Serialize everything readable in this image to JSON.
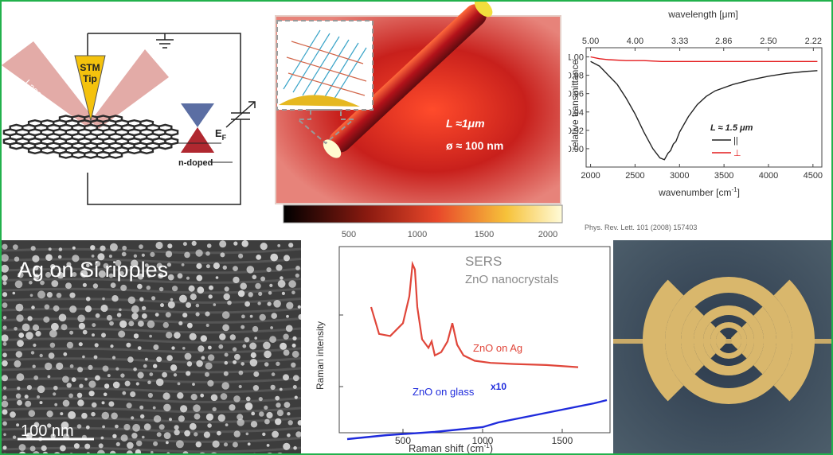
{
  "stm_panel": {
    "laser_label": "Laser",
    "tip_label_line1": "STM",
    "tip_label_line2": "Tip",
    "fermi_label": "E",
    "fermi_sub": "F",
    "doping_label": "n-doped"
  },
  "nanorod_panel": {
    "length_label": "L ≈1μm",
    "diameter_label": "ø ≈ 100 nm",
    "colorbar_ticks": [
      "500",
      "1000",
      "1500",
      "2000"
    ]
  },
  "spectrum_panel": {
    "top_axis_label": "wavelength [μm]",
    "top_ticks": [
      "5.00",
      "4.00",
      "3.33",
      "2.86",
      "2.50",
      "2.22"
    ],
    "ylabel": "relative transmittance",
    "xlabel": "wavenumber [cm",
    "xlabel_sup": "-1",
    "xlabel_end": "]",
    "legend_title": "L ≈ 1.5 μm",
    "legend_parallel": "||",
    "legend_perp": "⊥",
    "citation": "Phys. Rev. Lett. 101 (2008) 157403"
  },
  "sem_panel": {
    "title": "Ag on Si ripples",
    "scale_label": "100 nm"
  },
  "raman_panel": {
    "title_line1": "SERS",
    "title_line2": "ZnO nanocrystals",
    "series_ag_label": "ZnO on Ag",
    "series_glass_label": "ZnO on glass",
    "scale_factor_label": "x10",
    "ylabel": "Raman intensity",
    "xlabel": "Raman shift (cm",
    "xlabel_sup": "-1",
    "xlabel_end": ")"
  },
  "colors": {
    "frame": "#22b14c",
    "perp_series": "#e41a1c",
    "parallel_series": "#222222",
    "ag_series": "#e0463a",
    "glass_series": "#1f2bdc",
    "antenna_gold": "#d9b76c"
  },
  "chart_data": [
    {
      "type": "line",
      "title": "",
      "xlabel": "wavenumber [cm-1]",
      "ylabel": "relative transmittance",
      "xlim": [
        1950,
        4600
      ],
      "ylim": [
        0.88,
        1.01
      ],
      "xticks": [
        2000,
        2500,
        3000,
        3500,
        4000,
        4500
      ],
      "yticks": [
        0.9,
        0.92,
        0.94,
        0.96,
        0.98,
        1.0
      ],
      "secondary_xlabel": "wavelength [μm]",
      "secondary_xticks": [
        "5.00",
        "4.00",
        "3.33",
        "2.86",
        "2.50",
        "2.22"
      ],
      "legend": "bottom-right",
      "series": [
        {
          "name": "||",
          "x": [
            2000,
            2100,
            2200,
            2300,
            2400,
            2500,
            2600,
            2700,
            2780,
            2830,
            2870,
            2900,
            2930,
            2960,
            3000,
            3100,
            3200,
            3300,
            3400,
            3600,
            3800,
            4000,
            4200,
            4400,
            4550
          ],
          "values": [
            0.995,
            0.99,
            0.98,
            0.97,
            0.955,
            0.938,
            0.918,
            0.9,
            0.89,
            0.888,
            0.895,
            0.898,
            0.905,
            0.908,
            0.918,
            0.935,
            0.948,
            0.957,
            0.963,
            0.97,
            0.975,
            0.979,
            0.982,
            0.984,
            0.985
          ]
        },
        {
          "name": "⊥",
          "x": [
            2000,
            2100,
            2200,
            2400,
            2600,
            2800,
            3000,
            3500,
            4000,
            4550
          ],
          "values": [
            1.0,
            0.998,
            0.997,
            0.996,
            0.996,
            0.995,
            0.995,
            0.995,
            0.995,
            0.995
          ]
        }
      ]
    },
    {
      "type": "line",
      "title": "",
      "xlabel": "Raman shift (cm-1)",
      "ylabel": "Raman intensity",
      "xlim": [
        100,
        1800
      ],
      "xticks": [
        500,
        1000,
        1500
      ],
      "series": [
        {
          "name": "ZnO on Ag",
          "x": [
            300,
            350,
            420,
            500,
            540,
            560,
            575,
            590,
            620,
            660,
            680,
            700,
            740,
            780,
            810,
            840,
            880,
            950,
            1050,
            1200,
            1400,
            1600
          ],
          "values": [
            0.6,
            0.35,
            0.33,
            0.45,
            0.7,
            1.0,
            0.95,
            0.6,
            0.3,
            0.22,
            0.28,
            0.15,
            0.18,
            0.28,
            0.45,
            0.25,
            0.15,
            0.1,
            0.08,
            0.07,
            0.06,
            0.04
          ]
        },
        {
          "name": "ZnO on glass",
          "x": [
            150,
            400,
            700,
            1000,
            1100,
            1300,
            1500,
            1700,
            1780
          ],
          "values": [
            -0.85,
            -0.8,
            -0.76,
            -0.7,
            -0.64,
            -0.56,
            -0.48,
            -0.4,
            -0.36
          ]
        }
      ]
    }
  ]
}
